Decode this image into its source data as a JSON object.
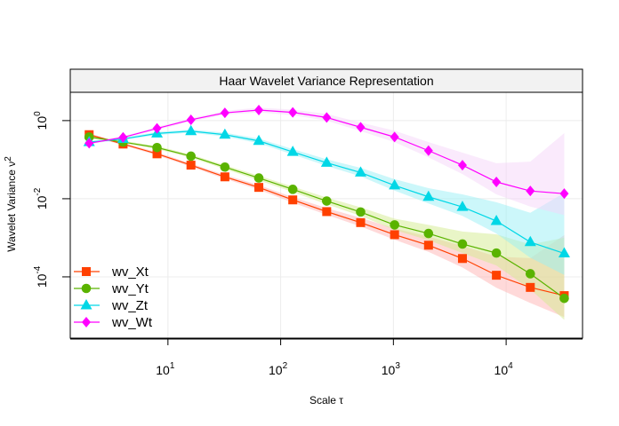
{
  "chart_data": {
    "type": "line",
    "title": "Haar Wavelet Variance Representation",
    "xlabel": "Scale τ",
    "ylabel_base": "Wavelet Variance ν",
    "ylabel_sup": "2",
    "xscale": "log",
    "yscale": "log",
    "xlim": [
      1.36,
      47600
    ],
    "ylim": [
      2.7e-06,
      5.3
    ],
    "grid": true,
    "legend_position": "bottom-left",
    "x_ticks": [
      {
        "value": 10,
        "base": "10",
        "exp": "1"
      },
      {
        "value": 100,
        "base": "10",
        "exp": "2"
      },
      {
        "value": 1000,
        "base": "10",
        "exp": "3"
      },
      {
        "value": 10000,
        "base": "10",
        "exp": "4"
      }
    ],
    "y_ticks": [
      {
        "value": 1,
        "base": "10",
        "exp": "0"
      },
      {
        "value": 0.01,
        "base": "10",
        "exp": "-2"
      },
      {
        "value": 0.0001,
        "base": "10",
        "exp": "-4"
      }
    ],
    "x": [
      2,
      4,
      8,
      16,
      32,
      64,
      128,
      256,
      512,
      1024,
      2048,
      4096,
      8192,
      16384,
      32768
    ],
    "series": [
      {
        "name": "wv_Xt",
        "color": "#FF4000",
        "band_color": "#FFB3B3",
        "marker": "square",
        "values": [
          0.436,
          0.251,
          0.141,
          0.0724,
          0.0363,
          0.0195,
          0.00933,
          0.00468,
          0.00245,
          0.0012,
          0.000646,
          0.000295,
          0.00011,
          5.37e-05,
          3.31e-05
        ],
        "lower": [
          0.407,
          0.234,
          0.129,
          0.0661,
          0.0324,
          0.017,
          0.00794,
          0.00389,
          0.00195,
          0.000891,
          0.000437,
          0.000174,
          5.25e-05,
          2.14e-05,
          9.33e-06
        ],
        "upper": [
          0.468,
          0.269,
          0.155,
          0.0794,
          0.0407,
          0.0224,
          0.01096,
          0.00575,
          0.00324,
          0.00174,
          0.00107,
          0.000617,
          0.000331,
          0.000302,
          0.00117
        ]
      },
      {
        "name": "wv_Yt",
        "color": "#5AB300",
        "band_color": "#D4EB8F",
        "marker": "circle",
        "values": [
          0.38,
          0.282,
          0.204,
          0.123,
          0.0646,
          0.0339,
          0.0174,
          0.00871,
          0.00457,
          0.00214,
          0.00129,
          0.000692,
          0.000407,
          0.00012,
          2.82e-05
        ],
        "lower": [
          0.355,
          0.263,
          0.186,
          0.112,
          0.0575,
          0.0295,
          0.0148,
          0.00724,
          0.00363,
          0.00158,
          0.000871,
          0.000407,
          0.000195,
          4.79e-05,
          7.94e-06
        ],
        "upper": [
          0.407,
          0.302,
          0.224,
          0.135,
          0.0724,
          0.0389,
          0.0204,
          0.0107,
          0.00603,
          0.00309,
          0.00214,
          0.00145,
          0.00123,
          0.000676,
          0.001
        ]
      },
      {
        "name": "wv_Zt",
        "color": "#00D7E6",
        "band_color": "#99F0F5",
        "marker": "triangle",
        "values": [
          0.282,
          0.339,
          0.468,
          0.537,
          0.436,
          0.302,
          0.158,
          0.0832,
          0.0468,
          0.0219,
          0.0112,
          0.00617,
          0.00269,
          0.000776,
          0.000398
        ],
        "lower": [
          0.263,
          0.316,
          0.427,
          0.49,
          0.389,
          0.263,
          0.135,
          0.0692,
          0.0372,
          0.0162,
          0.00759,
          0.00363,
          0.00129,
          0.000309,
          0.000112
        ],
        "upper": [
          0.302,
          0.363,
          0.513,
          0.589,
          0.49,
          0.347,
          0.186,
          0.102,
          0.0617,
          0.0316,
          0.0186,
          0.0129,
          0.00813,
          0.00437,
          0.0141
        ]
      },
      {
        "name": "wv_Wt",
        "color": "#FF00FF",
        "band_color": "#F5D6FA",
        "marker": "diamond",
        "values": [
          0.263,
          0.372,
          0.631,
          1.05,
          1.58,
          1.86,
          1.62,
          1.2,
          0.676,
          0.38,
          0.17,
          0.0724,
          0.0269,
          0.0158,
          0.0135
        ],
        "lower": [
          0.245,
          0.347,
          0.575,
          0.955,
          1.41,
          1.62,
          1.38,
          1.0,
          0.537,
          0.282,
          0.115,
          0.0427,
          0.0129,
          0.00631,
          0.0038
        ],
        "upper": [
          0.282,
          0.398,
          0.692,
          1.15,
          1.78,
          2.14,
          1.91,
          1.48,
          0.891,
          0.55,
          0.282,
          0.151,
          0.0813,
          0.0891,
          0.479
        ]
      }
    ]
  }
}
